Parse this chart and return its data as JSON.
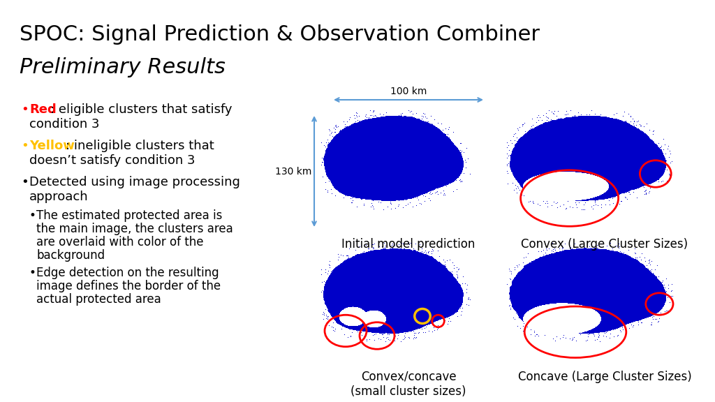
{
  "title": "SPOC: Signal Prediction & Observation Combiner",
  "subtitle": "Preliminary Results",
  "bg_color": "#ffffff",
  "bullet1_prefix": "Red",
  "bullet1_prefix_color": "#ff0000",
  "bullet1_text": ": eligible clusters that satisfy",
  "bullet1_text2": "condition 3",
  "bullet2_prefix": "Yellow",
  "bullet2_prefix_color": "#ffc000",
  "bullet2_text": ": ineligible clusters that",
  "bullet2_text2": "doesn’t satisfy condition 3",
  "bullet3_line1": "Detected using image processing",
  "bullet3_line2": "approach",
  "sub_bullet1_lines": [
    "The estimated protected area is",
    "the main image, the clusters area",
    "are overlaid with color of the",
    "background"
  ],
  "sub_bullet2_lines": [
    "Edge detection on the resulting",
    "image defines the border of the",
    "actual protected area"
  ],
  "img_label1": "Initial model prediction",
  "img_label2": "Convex (Large Cluster Sizes)",
  "img_label3": "Convex/concave\n(small cluster sizes)",
  "img_label4": "Concave (Large Cluster Sizes)",
  "scale_100km": "100 km",
  "scale_130km": "130 km",
  "title_fontsize": 22,
  "subtitle_fontsize": 22,
  "text_fontsize": 13,
  "sub_text_fontsize": 12,
  "label_fontsize": 12,
  "blue_color": [
    0,
    0,
    200
  ]
}
